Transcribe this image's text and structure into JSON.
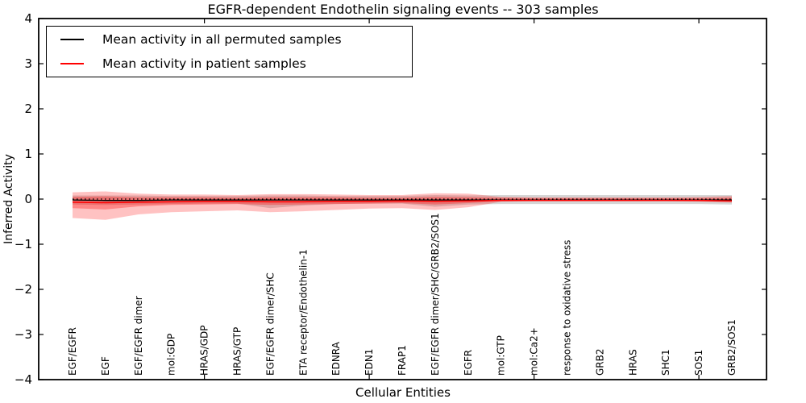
{
  "chart_data": {
    "type": "line",
    "title": "EGFR-dependent Endothelin signaling events -- 303 samples",
    "xlabel": "Cellular Entities",
    "ylabel": "Inferred Activity",
    "ylim": [
      -4,
      4
    ],
    "yticks": [
      4,
      3,
      2,
      1,
      0,
      -1,
      -2,
      -3,
      -4
    ],
    "grid": false,
    "legend_position": "upper left",
    "categories": [
      "EGF/EGFR",
      "EGF",
      "EGF/EGFR dimer",
      "mol:GDP",
      "HRAS/GDP",
      "HRAS/GTP",
      "EGF/EGFR dimer/SHC",
      "ETA receptor/Endothelin-1",
      "EDNRA",
      "EDN1",
      "FRAP1",
      "EGF/EGFR dimer/SHC/GRB2/SOS1",
      "EGFR",
      "mol:GTP",
      "mol:Ca2+",
      "response to oxidative stress",
      "GRB2",
      "HRAS",
      "SHC1",
      "SOS1",
      "GRB2/SOS1"
    ],
    "xticks_at_category_index": [
      4,
      9,
      14,
      19
    ],
    "series": [
      {
        "name": "Mean activity in all permuted samples",
        "color": "#000000",
        "style": "solid",
        "width": 1.3,
        "values": [
          -0.02,
          -0.03,
          -0.03,
          -0.02,
          -0.02,
          -0.02,
          -0.02,
          -0.02,
          -0.02,
          -0.02,
          -0.02,
          -0.02,
          -0.02,
          -0.02,
          -0.02,
          -0.02,
          -0.02,
          -0.02,
          -0.02,
          -0.02,
          -0.02
        ]
      },
      {
        "name": "Mean activity in patient samples",
        "color": "#ff0000",
        "style": "solid",
        "width": 1.5,
        "values": [
          -0.07,
          -0.08,
          -0.07,
          -0.06,
          -0.05,
          -0.05,
          -0.06,
          -0.06,
          -0.05,
          -0.05,
          -0.04,
          -0.05,
          -0.04,
          -0.03,
          -0.03,
          -0.03,
          -0.03,
          -0.03,
          -0.03,
          -0.03,
          -0.04
        ]
      },
      {
        "name": "zero-reference",
        "color": "#000000",
        "style": "dotted",
        "width": 1.2,
        "values": [
          0,
          0,
          0,
          0,
          0,
          0,
          0,
          0,
          0,
          0,
          0,
          0,
          0,
          0,
          0,
          0,
          0,
          0,
          0,
          0,
          0
        ]
      }
    ],
    "bands": [
      {
        "name": "permuted-samples-range",
        "color": "#808080",
        "opacity": 0.32,
        "high": [
          0.08,
          0.08,
          0.08,
          0.07,
          0.07,
          0.07,
          0.08,
          0.08,
          0.07,
          0.07,
          0.07,
          0.09,
          0.08,
          0.09,
          0.09,
          0.09,
          0.09,
          0.09,
          0.09,
          0.09,
          0.09
        ],
        "low": [
          -0.12,
          -0.13,
          -0.12,
          -0.11,
          -0.1,
          -0.1,
          -0.2,
          -0.14,
          -0.11,
          -0.1,
          -0.1,
          -0.17,
          -0.12,
          -0.11,
          -0.11,
          -0.11,
          -0.11,
          -0.11,
          -0.11,
          -0.11,
          -0.12
        ]
      },
      {
        "name": "patient-samples-range-outer",
        "color": "#ff0000",
        "opacity": 0.24,
        "high": [
          0.15,
          0.17,
          0.12,
          0.1,
          0.1,
          0.09,
          0.11,
          0.11,
          0.1,
          0.09,
          0.09,
          0.13,
          0.12,
          0.05,
          0.04,
          0.04,
          0.04,
          0.04,
          0.04,
          0.05,
          0.07
        ],
        "low": [
          -0.42,
          -0.46,
          -0.34,
          -0.29,
          -0.27,
          -0.25,
          -0.29,
          -0.27,
          -0.24,
          -0.21,
          -0.2,
          -0.24,
          -0.18,
          -0.06,
          -0.05,
          -0.05,
          -0.05,
          -0.05,
          -0.05,
          -0.06,
          -0.08
        ]
      },
      {
        "name": "patient-samples-range-inner",
        "color": "#ff0000",
        "opacity": 0.3,
        "high": [
          0.05,
          0.06,
          0.04,
          0.04,
          0.04,
          0.03,
          0.04,
          0.04,
          0.04,
          0.03,
          0.03,
          0.05,
          0.04,
          0.03,
          0.02,
          0.02,
          0.02,
          0.02,
          0.02,
          0.02,
          0.03
        ],
        "low": [
          -0.2,
          -0.23,
          -0.16,
          -0.13,
          -0.12,
          -0.11,
          -0.13,
          -0.12,
          -0.11,
          -0.1,
          -0.09,
          -0.12,
          -0.09,
          -0.05,
          -0.04,
          -0.04,
          -0.04,
          -0.04,
          -0.04,
          -0.05,
          -0.06
        ]
      }
    ]
  }
}
